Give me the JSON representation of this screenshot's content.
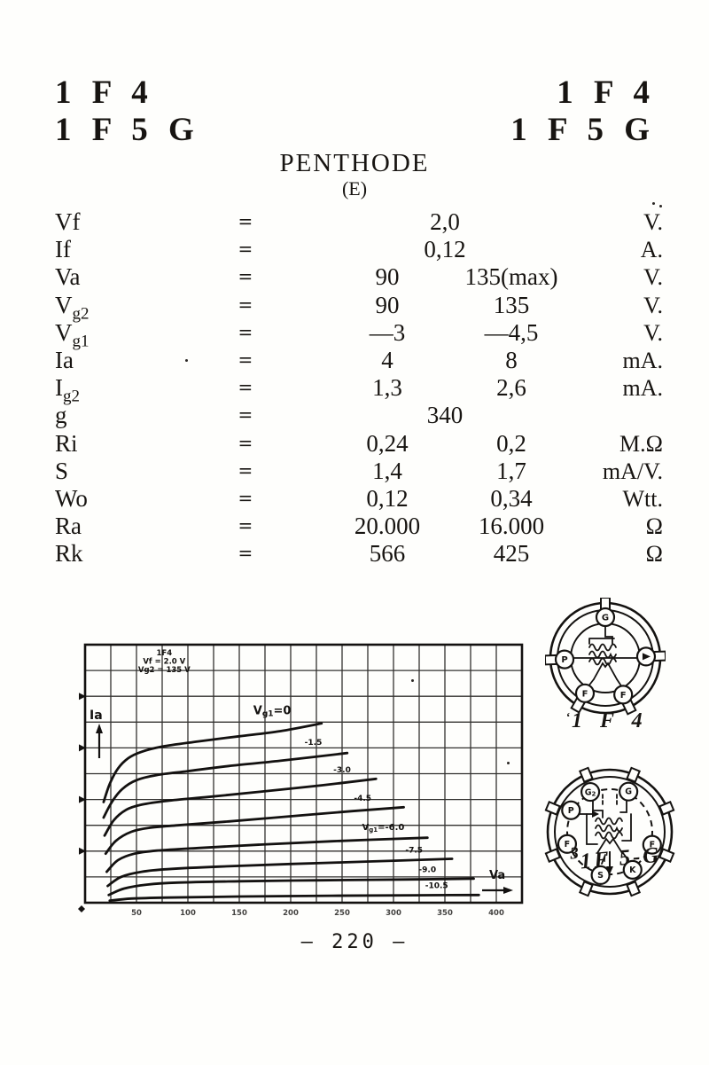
{
  "page": {
    "header_left": [
      "1 F 4",
      "1 F 5 G"
    ],
    "header_right": [
      "1 F 4",
      "1 F 5 G"
    ],
    "title": "PENTHODE",
    "subtitle": "(E)",
    "page_number": "— 220 —"
  },
  "spec_table": {
    "rows": [
      {
        "param": "Vf",
        "eq": "=",
        "value_center": "2,0",
        "unit": "V."
      },
      {
        "param": "If",
        "eq": "=",
        "value_center": "0,12",
        "unit": "A."
      },
      {
        "param": "Va",
        "eq": "=",
        "value1": "90",
        "value2": "135(max)",
        "unit": "V."
      },
      {
        "param": "Vg2",
        "eq": "=",
        "value1": "90",
        "value2": "135",
        "unit": "V."
      },
      {
        "param": "Vg1",
        "eq": "=",
        "value1": "—3",
        "value2": "—4,5",
        "unit": "V."
      },
      {
        "param": "Ia",
        "eq": "=",
        "value1": "4",
        "value2": "8",
        "unit": "mA."
      },
      {
        "param": "Ig2",
        "eq": "=",
        "value1": "1,3",
        "value2": "2,6",
        "unit": "mA."
      },
      {
        "param": "g",
        "eq": "=",
        "value_center": "340",
        "unit": ""
      },
      {
        "param": "Ri",
        "eq": "=",
        "value1": "0,24",
        "value2": "0,2",
        "unit": "M.Ω"
      },
      {
        "param": "S",
        "eq": "=",
        "value1": "1,4",
        "value2": "1,7",
        "unit": "mA/V."
      },
      {
        "param": "Wo",
        "eq": "=",
        "value1": "0,12",
        "value2": "0,34",
        "unit": "Wtt."
      },
      {
        "param": "Ra",
        "eq": "=",
        "value1": "20.000",
        "value2": "16.000",
        "unit": "Ω"
      },
      {
        "param": "Rk",
        "eq": "=",
        "value1": "566",
        "value2": "425",
        "unit": "Ω"
      }
    ]
  },
  "chart_data": {
    "type": "line",
    "title_annotation": [
      "1F4",
      "Vf = 2.0 V",
      "Vg2 = 135 V"
    ],
    "xlabel": "Va",
    "ylabel": "Ia",
    "xlim": [
      0,
      425
    ],
    "ylim": [
      0,
      10
    ],
    "x_grid_step": 25,
    "y_grid_step": 1,
    "grid": true,
    "x_tick_labels": [
      50,
      100,
      150,
      200,
      250,
      300,
      350,
      400
    ],
    "y_tick_arrow_values": [
      2,
      4,
      6,
      8
    ],
    "series": [
      {
        "label": "Vg1=0",
        "label_at": [
          182,
          7.3
        ],
        "label_size": 13,
        "points": [
          [
            18,
            3.9
          ],
          [
            24,
            4.6
          ],
          [
            32,
            5.2
          ],
          [
            42,
            5.6
          ],
          [
            55,
            5.85
          ],
          [
            75,
            6.05
          ],
          [
            110,
            6.25
          ],
          [
            150,
            6.45
          ],
          [
            190,
            6.65
          ],
          [
            230,
            6.95
          ]
        ]
      },
      {
        "label": "-1.5",
        "label_at": [
          222,
          6.12
        ],
        "label_size": 9,
        "points": [
          [
            18,
            3.3
          ],
          [
            26,
            3.9
          ],
          [
            36,
            4.4
          ],
          [
            50,
            4.75
          ],
          [
            70,
            4.95
          ],
          [
            100,
            5.1
          ],
          [
            140,
            5.3
          ],
          [
            190,
            5.5
          ],
          [
            255,
            5.8
          ]
        ]
      },
      {
        "label": "-3.0",
        "label_at": [
          250,
          5.05
        ],
        "label_size": 9,
        "points": [
          [
            19,
            2.6
          ],
          [
            28,
            3.2
          ],
          [
            40,
            3.6
          ],
          [
            55,
            3.8
          ],
          [
            80,
            3.95
          ],
          [
            120,
            4.1
          ],
          [
            170,
            4.3
          ],
          [
            230,
            4.55
          ],
          [
            283,
            4.8
          ]
        ]
      },
      {
        "label": "-4.5",
        "label_at": [
          270,
          3.95
        ],
        "label_size": 9,
        "points": [
          [
            20,
            1.9
          ],
          [
            30,
            2.4
          ],
          [
            45,
            2.75
          ],
          [
            62,
            2.9
          ],
          [
            90,
            3.0
          ],
          [
            140,
            3.15
          ],
          [
            200,
            3.35
          ],
          [
            260,
            3.55
          ],
          [
            310,
            3.7
          ]
        ]
      },
      {
        "label": "Vg1=-6.0",
        "label_at": [
          290,
          2.82
        ],
        "label_size": 10,
        "points": [
          [
            21,
            1.2
          ],
          [
            32,
            1.65
          ],
          [
            48,
            1.9
          ],
          [
            70,
            2.02
          ],
          [
            110,
            2.12
          ],
          [
            170,
            2.25
          ],
          [
            240,
            2.38
          ],
          [
            333,
            2.52
          ]
        ]
      },
      {
        "label": "-7.5",
        "label_at": [
          320,
          1.95
        ],
        "label_size": 9,
        "points": [
          [
            22,
            0.65
          ],
          [
            35,
            1.0
          ],
          [
            55,
            1.2
          ],
          [
            80,
            1.3
          ],
          [
            130,
            1.4
          ],
          [
            200,
            1.5
          ],
          [
            280,
            1.6
          ],
          [
            357,
            1.7
          ]
        ]
      },
      {
        "label": "-9.0",
        "label_at": [
          333,
          1.18
        ],
        "label_size": 9,
        "points": [
          [
            23,
            0.3
          ],
          [
            38,
            0.55
          ],
          [
            60,
            0.7
          ],
          [
            90,
            0.78
          ],
          [
            150,
            0.83
          ],
          [
            230,
            0.87
          ],
          [
            310,
            0.9
          ],
          [
            378,
            0.93
          ]
        ]
      },
      {
        "label": "-10.5",
        "label_at": [
          342,
          0.56
        ],
        "label_size": 9,
        "points": [
          [
            24,
            0.08
          ],
          [
            45,
            0.16
          ],
          [
            80,
            0.2
          ],
          [
            150,
            0.24
          ],
          [
            240,
            0.27
          ],
          [
            320,
            0.29
          ],
          [
            383,
            0.3
          ]
        ]
      }
    ]
  },
  "sockets": [
    {
      "caption": "1 F 4",
      "stray": "‘",
      "pins": [
        {
          "label": "G",
          "angle": 90
        },
        {
          "label": "P",
          "angle": 182
        },
        {
          "label": "",
          "angle": 2,
          "arrow": true
        },
        {
          "label": "F",
          "angle": 240
        },
        {
          "label": "F",
          "angle": 296
        }
      ],
      "lug_angles": [
        90,
        182,
        2,
        240,
        296
      ]
    },
    {
      "caption": "1F 5-G",
      "stray": "3",
      "pins": [
        {
          "label": "G2",
          "angle": 116
        },
        {
          "label": "G",
          "angle": 65
        },
        {
          "label": "P",
          "angle": 151
        },
        {
          "label": "F",
          "angle": 196
        },
        {
          "label": "F",
          "angle": 343
        },
        {
          "label": "S",
          "angle": 258
        },
        {
          "label": "K",
          "angle": 301
        }
      ],
      "lug_angles": [
        22.5,
        67.5,
        112.5,
        157.5,
        202.5,
        247.5,
        292.5,
        337.5
      ],
      "key": true
    }
  ]
}
